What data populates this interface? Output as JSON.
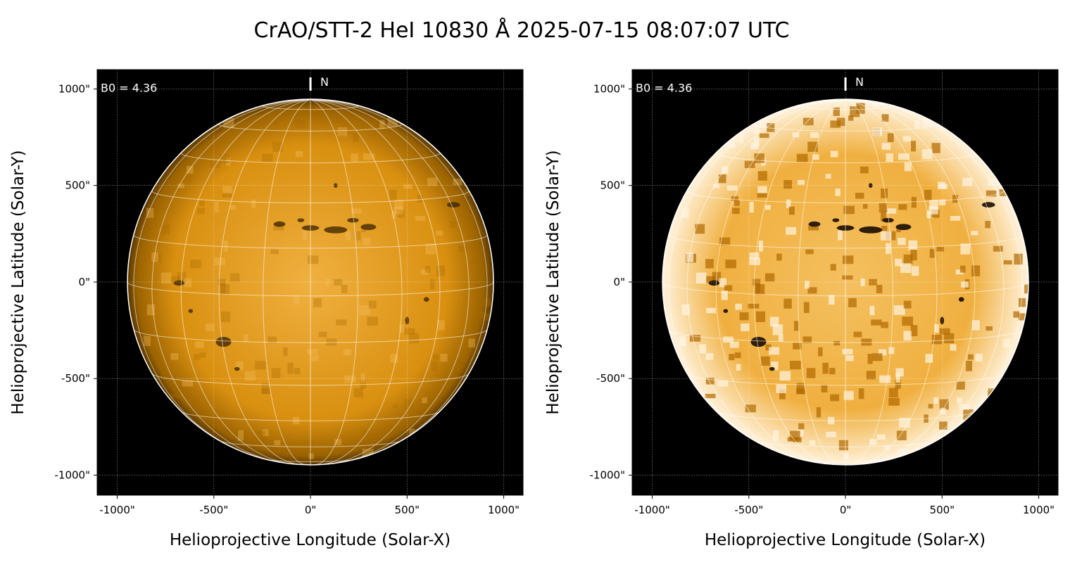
{
  "title": "CrAO/STT-2 HeI 10830 Å 2025-07-15 08:07:07 UTC",
  "chart_data": {
    "type": "image",
    "title": "CrAO/STT-2 HeI 10830 Å 2025-07-15 08:07:07 UTC",
    "panels": [
      {
        "name": "left",
        "style": "normal-contrast"
      },
      {
        "name": "right",
        "style": "high-contrast"
      }
    ],
    "xlabel": "Helioprojective Longitude (Solar-X)",
    "ylabel": "Helioprojective Latitude (Solar-Y)",
    "xlim": [
      -1104,
      1100
    ],
    "ylim": [
      -1104,
      1100
    ],
    "xticks": [
      -1000,
      -500,
      0,
      500,
      1000
    ],
    "yticks": [
      -1000,
      -500,
      0,
      500,
      1000
    ],
    "xtick_labels": [
      "-1000\"",
      "-500\"",
      "0\"",
      "500\"",
      "1000\""
    ],
    "ytick_labels": [
      "-1000\"",
      "-500\"",
      "0\"",
      "500\"",
      "1000\""
    ],
    "solar_radius_arcsec": 947,
    "b0_deg": 4.36,
    "annotation_b0": "B0 = 4.36",
    "north_label": "N",
    "grid": true,
    "colors": {
      "sun": "#e8a21a",
      "sun_dark": "#6a4000",
      "background": "#000000",
      "grid": "#ffffff"
    }
  }
}
